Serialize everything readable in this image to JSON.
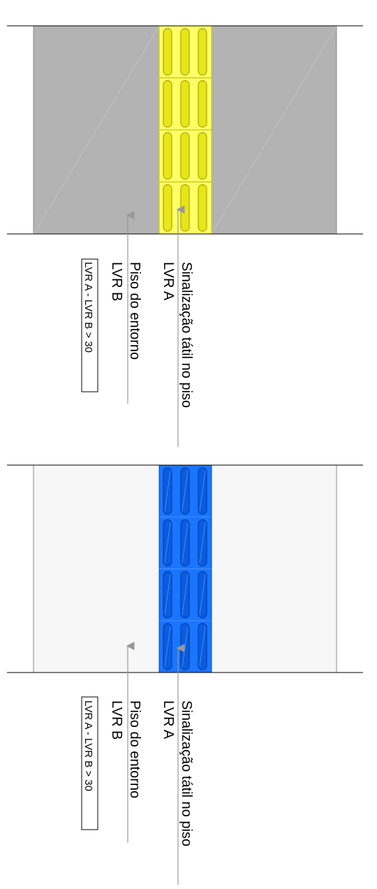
{
  "colors": {
    "gray_floor": "#b3b3b3",
    "light_floor": "#f7f7f7",
    "yellow_tactile": "#ffff66",
    "yellow_bar": "#e6e61a",
    "yellow_stroke": "#a8a800",
    "blue_tactile": "#1a75ff",
    "blue_bar": "#0a5ce0",
    "blue_stroke": "#003fa8",
    "arrow": "#999999",
    "line": "#000000"
  },
  "panels": [
    {
      "id": "top",
      "floor_color": "gray",
      "tactile_color": "yellow",
      "labels": {
        "tactile": [
          "Sinalização tátil no piso",
          "LVR A"
        ],
        "surround": [
          "Piso do entorno",
          "LVR B"
        ],
        "rule": "LVR A - LVR B > 30"
      }
    },
    {
      "id": "bottom",
      "floor_color": "light",
      "tactile_color": "blue",
      "labels": {
        "tactile": [
          "Sinalização tátil no piso",
          "LVR A"
        ],
        "surround": [
          "Piso do entorno",
          "LVR B"
        ],
        "rule": "LVR A - LVR B > 30"
      }
    }
  ]
}
